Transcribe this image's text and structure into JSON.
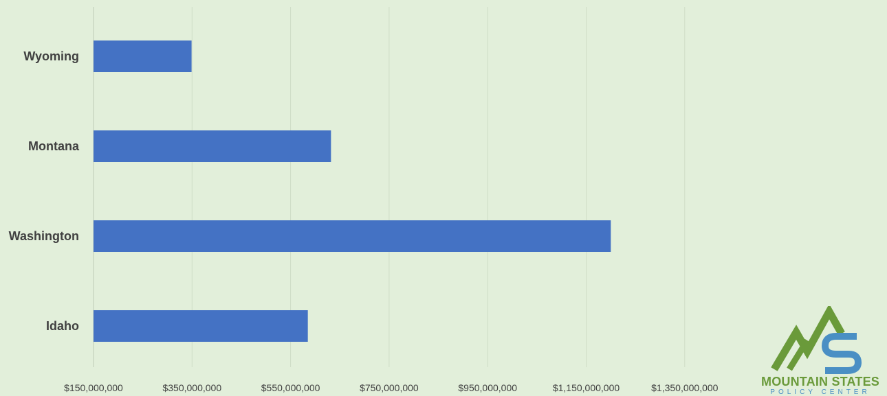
{
  "chart_data": {
    "type": "bar",
    "orientation": "horizontal",
    "categories": [
      "Wyoming",
      "Montana",
      "Washington",
      "Idaho"
    ],
    "values": [
      349000000,
      632000000,
      1200000000,
      585000000
    ],
    "xlim": [
      150000000,
      1350000000
    ],
    "xticks": [
      "$150,000,000",
      "$350,000,000",
      "$550,000,000",
      "$750,000,000",
      "$950,000,000",
      "$1,150,000,000",
      "$1,350,000,000"
    ],
    "xtick_values": [
      150000000,
      350000000,
      550000000,
      750000000,
      950000000,
      1150000000,
      1350000000
    ],
    "grid": true,
    "colors": {
      "bar": "#4472c4",
      "grid": "#cfdcc6",
      "background": "#e2efda"
    }
  },
  "logo": {
    "name": "MOUNTAIN STATES",
    "sub": "POLICY CENTER",
    "colors": {
      "green": "#6a9a3a",
      "blue": "#4a8fc4"
    }
  }
}
